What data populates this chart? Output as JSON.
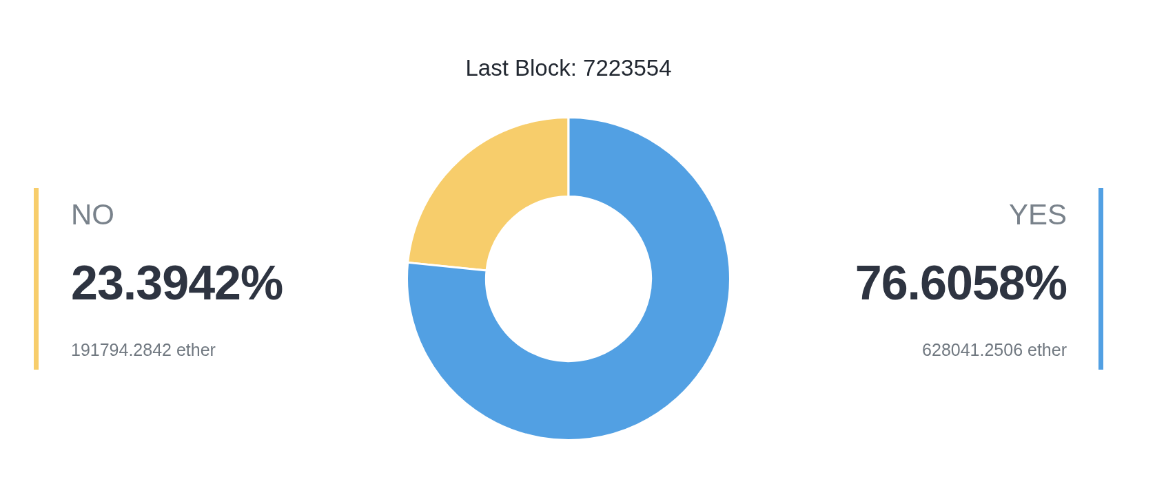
{
  "chart_data": {
    "type": "donut",
    "title": "Last Block: 7223554",
    "categories": [
      "NO",
      "YES"
    ],
    "values": [
      23.3942,
      76.6058
    ],
    "value_labels": [
      "23.3942%",
      "76.6058%"
    ],
    "colors": [
      "#f7cd6b",
      "#52a0e3"
    ],
    "annotations": [
      "191794.2842 ether",
      "628041.2506 ether"
    ]
  }
}
